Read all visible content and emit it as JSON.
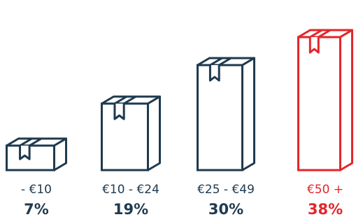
{
  "chart_data": {
    "type": "bar",
    "categories": [
      "- €10",
      "€10 - €24",
      "€25 - €49",
      "€50 +"
    ],
    "values": [
      7,
      19,
      30,
      38
    ],
    "value_labels": [
      "7%",
      "19%",
      "30%",
      "38%"
    ],
    "unit": "%",
    "highlight_index": 3,
    "colors": {
      "default": "#1e3a4f",
      "highlight": "#e3262b"
    },
    "mark_style": "box-icons",
    "legend": "none",
    "grid": false
  }
}
